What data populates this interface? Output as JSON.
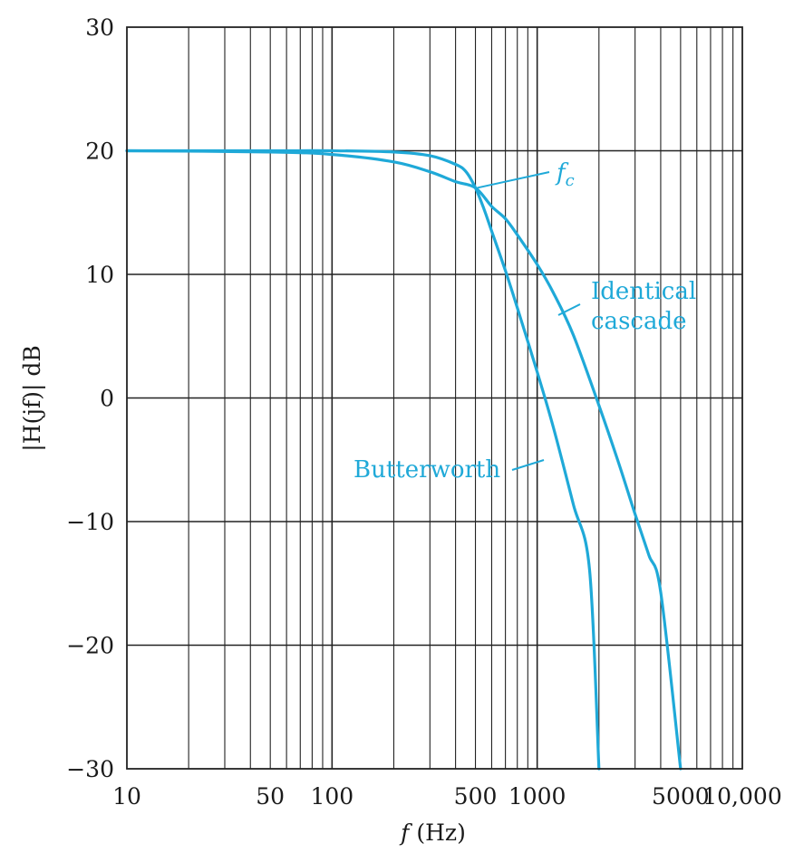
{
  "chart_data": {
    "type": "line",
    "title": "",
    "xlabel_italic": "f",
    "xlabel_unit": " (Hz)",
    "ylabel": "|H(jf)| dB",
    "xscale": "log",
    "xlim": [
      10,
      10000
    ],
    "ylim": [
      -30,
      30
    ],
    "grid": true,
    "x_tick_values": [
      10,
      50,
      100,
      500,
      1000,
      5000,
      10000
    ],
    "x_tick_labels": [
      "10",
      "50",
      "100",
      "500",
      "1000",
      "5000",
      "10,000"
    ],
    "y_tick_values": [
      30,
      20,
      10,
      0,
      -10,
      -20,
      -30
    ],
    "y_tick_labels": [
      "30",
      "20",
      "10",
      "0",
      "−10",
      "−20",
      "−30"
    ],
    "line_color": "#1fa9d8",
    "series": [
      {
        "name": "Butterworth",
        "x": [
          10,
          50,
          100,
          200,
          300,
          400,
          450,
          500,
          550,
          600,
          700,
          800,
          1000,
          1200,
          1500,
          1800,
          2000
        ],
        "y": [
          20,
          20,
          20,
          19.9,
          19.6,
          18.9,
          18.3,
          17.0,
          15.3,
          13.5,
          10.3,
          7.3,
          2.1,
          -2.4,
          -8.6,
          -13.9,
          -30.0
        ]
      },
      {
        "name": "Identical cascade",
        "x": [
          10,
          50,
          100,
          200,
          300,
          400,
          500,
          600,
          700,
          800,
          1000,
          1200,
          1500,
          2000,
          2500,
          3000,
          3500,
          4000,
          5000
        ],
        "y": [
          20,
          19.9,
          19.7,
          19.1,
          18.3,
          17.5,
          17.0,
          15.5,
          14.5,
          13.2,
          10.8,
          8.5,
          5.1,
          -0.6,
          -5.3,
          -9.4,
          -12.7,
          -15.7,
          -30.0
        ]
      }
    ],
    "annotations": {
      "fc_main": "f",
      "fc_sub": "c",
      "fc_point": {
        "x": 500,
        "y": 17.0
      },
      "identical_line1": "Identical",
      "identical_line2": "cascade",
      "butterworth": "Butterworth"
    }
  }
}
